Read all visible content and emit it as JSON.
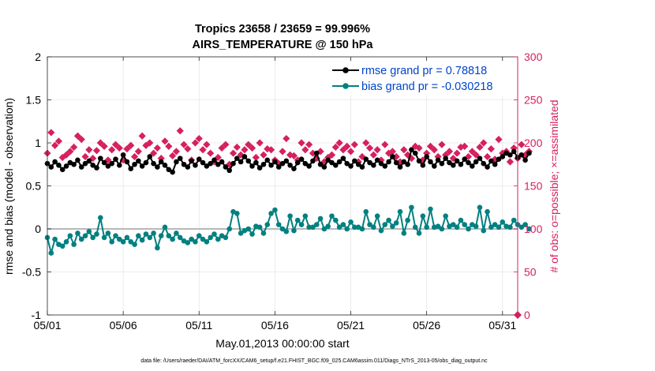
{
  "chart_data": {
    "type": "line",
    "title": "Tropics 23658 / 23659 = 99.996%",
    "subtitle": "AIRS_TEMPERATURE @ 150 hPa",
    "xlabel": "May.01,2013 00:00:00 start",
    "ylabel_left": "rmse and bias (model - observation)",
    "ylabel_right": "# of obs: o=possible; ×=assimilated",
    "footnote": "data file: /Users/raeder/DAI/ATM_forcXX/CAM6_setup/f.e21.FHIST_BGC.f09_025.CAM6assim.011/Diags_NTrS_2013-05/obs_diag_output.nc",
    "x_unit": "day of May 2013 (1 = 05/01 00:00)",
    "xlim": [
      1,
      32
    ],
    "x_ticks": [
      1,
      6,
      11,
      16,
      21,
      26,
      31
    ],
    "x_tick_labels": [
      "05/01",
      "05/06",
      "05/11",
      "05/16",
      "05/21",
      "05/26",
      "05/31"
    ],
    "ylim_left": [
      -1,
      2
    ],
    "y_ticks_left": [
      -1,
      -0.5,
      0,
      0.5,
      1,
      1.5,
      2
    ],
    "y_tick_labels_left": [
      "-1",
      "-0.5",
      "0",
      "0.5",
      "1",
      "1.5",
      "2"
    ],
    "ylim_right": [
      0,
      300
    ],
    "y_ticks_right": [
      0,
      50,
      100,
      150,
      200,
      250,
      300
    ],
    "y_tick_labels_right": [
      "0",
      "50",
      "100",
      "150",
      "200",
      "250",
      "300"
    ],
    "zero_line": 0,
    "grid": true,
    "legend_position": "top-right",
    "series": [
      {
        "name": "rmse grand pr = 0.78818",
        "axis": "left",
        "color": "#000000",
        "marker": "circle",
        "x_start": 1,
        "x_step": 0.25,
        "values": [
          0.76,
          0.72,
          0.78,
          0.74,
          0.69,
          0.73,
          0.77,
          0.75,
          0.8,
          0.72,
          0.76,
          0.79,
          0.74,
          0.71,
          0.82,
          0.77,
          0.73,
          0.76,
          0.81,
          0.74,
          0.86,
          0.78,
          0.7,
          0.75,
          0.79,
          0.73,
          0.77,
          0.84,
          0.76,
          0.72,
          0.78,
          0.74,
          0.69,
          0.66,
          0.78,
          0.82,
          0.75,
          0.72,
          0.79,
          0.74,
          0.81,
          0.77,
          0.73,
          0.76,
          0.8,
          0.75,
          0.78,
          0.72,
          0.68,
          0.76,
          0.82,
          0.78,
          0.84,
          0.79,
          0.73,
          0.77,
          0.71,
          0.75,
          0.8,
          0.74,
          0.78,
          0.72,
          0.76,
          0.79,
          0.74,
          0.7,
          0.77,
          0.81,
          0.76,
          0.73,
          0.79,
          0.88,
          0.75,
          0.72,
          0.8,
          0.77,
          0.74,
          0.78,
          0.82,
          0.76,
          0.73,
          0.79,
          0.75,
          0.72,
          0.81,
          0.77,
          0.74,
          0.8,
          0.76,
          0.73,
          0.78,
          0.84,
          0.77,
          0.72,
          0.78,
          0.75,
          0.92,
          0.88,
          0.79,
          0.74,
          0.84,
          0.78,
          0.73,
          0.8,
          0.76,
          0.82,
          0.77,
          0.74,
          0.79,
          0.75,
          0.81,
          0.77,
          0.73,
          0.78,
          0.82,
          0.76,
          0.72,
          0.79,
          0.75,
          0.81,
          0.84,
          0.88,
          0.86,
          0.9,
          0.83,
          0.86,
          0.8,
          0.88
        ]
      },
      {
        "name": "bias grand pr = -0.030218",
        "axis": "left",
        "color": "#008080",
        "marker": "circle",
        "x_start": 1,
        "x_step": 0.25,
        "values": [
          -0.1,
          -0.28,
          -0.12,
          -0.18,
          -0.2,
          -0.15,
          -0.08,
          -0.18,
          -0.05,
          -0.12,
          -0.08,
          -0.03,
          -0.1,
          -0.06,
          0.13,
          -0.1,
          -0.05,
          -0.15,
          -0.08,
          -0.12,
          -0.15,
          -0.1,
          -0.15,
          -0.18,
          -0.08,
          -0.13,
          -0.06,
          -0.1,
          -0.05,
          -0.22,
          -0.08,
          0.02,
          -0.08,
          -0.12,
          -0.05,
          -0.1,
          -0.14,
          -0.16,
          -0.12,
          -0.15,
          -0.08,
          -0.12,
          -0.15,
          -0.1,
          -0.06,
          -0.12,
          -0.08,
          -0.1,
          0.0,
          0.2,
          0.18,
          -0.05,
          -0.02,
          0.0,
          -0.06,
          0.03,
          0.02,
          -0.05,
          0.05,
          0.18,
          0.22,
          0.05,
          0.0,
          -0.03,
          0.15,
          -0.02,
          0.1,
          0.05,
          0.15,
          0.02,
          0.02,
          0.05,
          0.12,
          0.0,
          0.03,
          0.15,
          0.1,
          0.02,
          0.05,
          0.0,
          0.08,
          0.02,
          0.02,
          0.0,
          0.2,
          0.05,
          0.02,
          0.15,
          -0.02,
          0.05,
          0.1,
          0.03,
          0.07,
          0.2,
          -0.05,
          0.1,
          0.25,
          0.02,
          -0.05,
          0.15,
          0.02,
          0.23,
          0.02,
          0.03,
          0.0,
          0.15,
          0.03,
          0.05,
          0.02,
          0.1,
          0.05,
          0.0,
          0.05,
          0.03,
          0.25,
          -0.02,
          0.2,
          0.02,
          0.05,
          0.02,
          0.08,
          0.03,
          0.02,
          0.1,
          0.05,
          0.02,
          0.05,
          0.0
        ]
      },
      {
        "name": "# obs possible",
        "axis": "right",
        "color": "#d62060",
        "marker": "diamond",
        "x_start": 1,
        "x_step": 0.25,
        "values": [
          188,
          212,
          197,
          202,
          183,
          186,
          190,
          195,
          208,
          204,
          184,
          192,
          182,
          191,
          200,
          196,
          180,
          192,
          198,
          194,
          180,
          193,
          197,
          184,
          190,
          208,
          197,
          200,
          188,
          194,
          182,
          202,
          196,
          185,
          190,
          214,
          198,
          193,
          180,
          200,
          205,
          192,
          198,
          188,
          178,
          183,
          194,
          198,
          175,
          188,
          195,
          186,
          192,
          198,
          194,
          183,
          200,
          186,
          193,
          192,
          180,
          176,
          190,
          205,
          186,
          185,
          180,
          200,
          192,
          198,
          188,
          182,
          190,
          178,
          183,
          186,
          195,
          200,
          192,
          196,
          190,
          198,
          178,
          184,
          200,
          194,
          186,
          192,
          180,
          198,
          188,
          190,
          184,
          178,
          192,
          186,
          182,
          196,
          194,
          180,
          188,
          196,
          192,
          184,
          198,
          186,
          190,
          182,
          188,
          195,
          196,
          184,
          190,
          186,
          195,
          200,
          184,
          193,
          181,
          204,
          188,
          190,
          178,
          194,
          182,
          198,
          186,
          190
        ]
      }
    ]
  }
}
